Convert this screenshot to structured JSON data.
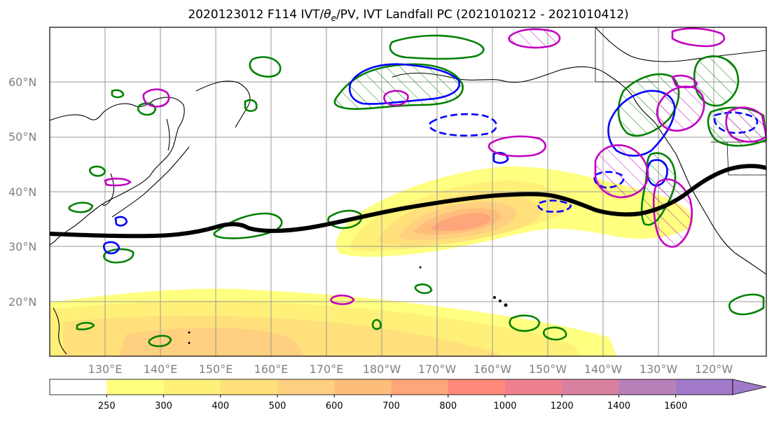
{
  "title": "2020123012 F114 IVT/θe/PV, IVT Landfall PC (2021010212 - 2021010412)",
  "title_parts": {
    "prefix": "2020123012 F114 IVT/",
    "theta": "θ",
    "sub": "e",
    "suffix": "/PV, IVT Landfall PC (2021010212 - 2021010412)"
  },
  "lat_labels": [
    "60°N",
    "50°N",
    "40°N",
    "30°N",
    "20°N"
  ],
  "lon_labels": [
    "130°E",
    "140°E",
    "150°E",
    "160°E",
    "170°E",
    "180°W",
    "170°W",
    "160°W",
    "150°W",
    "140°W",
    "130°W",
    "120°W"
  ],
  "colorbar": {
    "ticks": [
      "250",
      "300",
      "400",
      "500",
      "600",
      "700",
      "800",
      "1000",
      "1200",
      "1400",
      "1600"
    ],
    "colors": [
      "#ffffff",
      "#ffff80",
      "#fff07a",
      "#ffe07a",
      "#ffd080",
      "#ffbd7a",
      "#ffa57a",
      "#ff8a7a",
      "#f0808f",
      "#d880a0",
      "#b880b8",
      "#a07ac8"
    ]
  },
  "colors": {
    "ivt_contour_green": "#008000",
    "theta_contour_blue": "#0000ff",
    "pv_contour_magenta": "#c000c0",
    "landfall_track": "#000000",
    "coastline": "#000000",
    "grid": "#999999"
  }
}
